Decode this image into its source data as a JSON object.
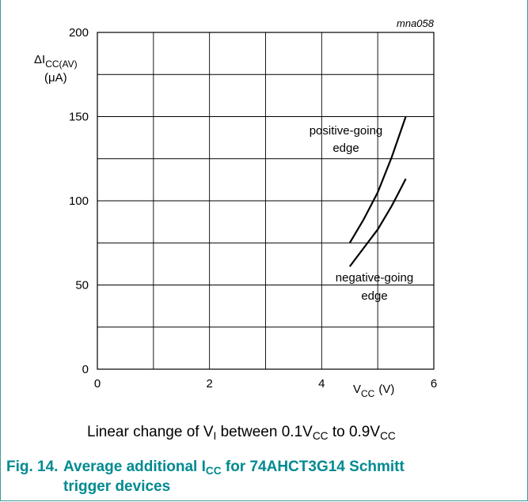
{
  "chart_data": {
    "type": "line",
    "code_label": "mna058",
    "ylabel": {
      "main": "ΔI",
      "sub": "CC(AV)",
      "unit": "(μA)"
    },
    "xlabel": {
      "main": "V",
      "sub": "CC",
      "unit": "(V)"
    },
    "xlim": [
      0,
      6
    ],
    "ylim": [
      0,
      200
    ],
    "xticks": [
      0,
      2,
      4,
      6
    ],
    "yticks": [
      0,
      50,
      100,
      150,
      200
    ],
    "grid": true,
    "series": [
      {
        "name": "positive-going edge",
        "label_lines": [
          "positive-going",
          "edge"
        ],
        "points": [
          [
            4.5,
            75
          ],
          [
            4.75,
            89
          ],
          [
            5.0,
            105
          ],
          [
            5.25,
            126
          ],
          [
            5.5,
            150
          ]
        ]
      },
      {
        "name": "negative-going edge",
        "label_lines": [
          "negative-going",
          "edge"
        ],
        "points": [
          [
            4.5,
            61
          ],
          [
            4.75,
            72
          ],
          [
            5.0,
            83
          ],
          [
            5.25,
            97
          ],
          [
            5.5,
            113
          ]
        ]
      }
    ]
  },
  "caption": {
    "text1": "Linear change of V",
    "sub1": "I",
    "text2": " between 0.1V",
    "sub2": "CC",
    "text3": " to 0.9V",
    "sub3": "CC"
  },
  "figure": {
    "number": "Fig. 14.",
    "title_part1": "Average additional I",
    "title_sub": "CC",
    "title_part2": " for 74AHCT3G14 Schmitt",
    "title_line2": "trigger devices"
  },
  "colors": {
    "frame": "#3f9a9a",
    "title": "#008a90",
    "curve": "#000000"
  }
}
